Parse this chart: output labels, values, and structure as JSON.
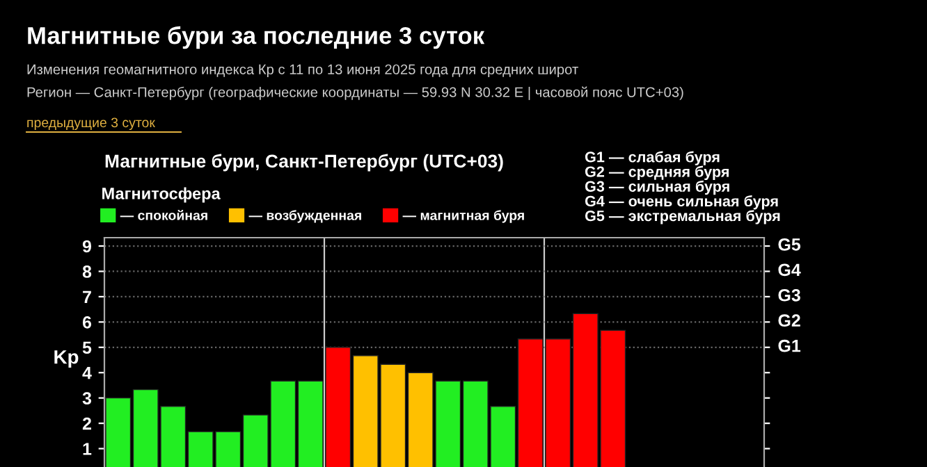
{
  "chart_data": {
    "type": "bar",
    "title": "Магнитные бури за последние 3 суток",
    "subtitle": "Изменения геомагнитного индекса Кр с 11 по 13 июня 2025 года для средних широт\nРегион — Санкт-Петербург (географические координаты — 59.93 N 30.32 E | часовой пояс UTC+03)",
    "annotations": [
      "предыдущие 3 суток",
      "Магнитные бури, Санкт-Петербург (UTC+03)",
      "G1 — слабая буря\nG2 — средняя буря\nG3 — сильная буря\nG4 — очень сильная буря\nG5 — экстремальная буря"
    ],
    "ylabel": "Kp",
    "categories": [
      null,
      null,
      null,
      null,
      null,
      null,
      null,
      null,
      null,
      null,
      null,
      null,
      null,
      null,
      null,
      null,
      null,
      null,
      null,
      null,
      null,
      null,
      null,
      null
    ],
    "legend": "top left",
    "legend_title": "Магнитосфера",
    "series": [
      {
        "name": "— спокойная",
        "color": "#22ee22",
        "values": [
          3,
          3.33,
          2.67,
          1.67,
          1.67,
          2.33,
          3.67,
          3.67,
          null,
          null,
          null,
          null,
          3.67,
          3.67,
          2.67,
          null,
          null,
          null,
          null,
          null,
          null,
          null,
          null,
          null
        ]
      },
      {
        "name": "— возбужденная",
        "color": "#ffc000",
        "values": [
          null,
          null,
          null,
          null,
          null,
          null,
          null,
          null,
          null,
          4.67,
          4.33,
          4,
          null,
          null,
          null,
          null,
          null,
          null,
          null,
          null,
          null,
          null,
          null,
          null
        ]
      },
      {
        "name": "— магнитная буря",
        "color": "#ff0000",
        "values": [
          null,
          null,
          null,
          null,
          null,
          null,
          null,
          null,
          5,
          null,
          null,
          null,
          null,
          null,
          null,
          5.33,
          5.33,
          6.33,
          5.67,
          null,
          null,
          null,
          null,
          null
        ]
      }
    ],
    "ylim": [
      0,
      9.33
    ],
    "yticks": [
      {
        "value": 0,
        "label": null
      },
      1,
      2,
      3,
      4,
      5,
      6,
      7,
      8,
      9
    ],
    "ref_lines": [
      {
        "axis": "y",
        "value": 5,
        "label": "G1",
        "color": "#666666",
        "line_style": "dotted"
      },
      {
        "axis": "y",
        "value": 6,
        "label": "G2",
        "color": "#666666",
        "line_style": "dotted"
      },
      {
        "axis": "y",
        "value": 7,
        "label": "G3",
        "color": "#666666",
        "line_style": "dotted"
      },
      {
        "axis": "y",
        "value": 8,
        "label": "G4",
        "color": "#666666",
        "line_style": "dotted"
      },
      {
        "axis": "y",
        "value": 9,
        "label": "G5",
        "color": "#666666",
        "line_style": "dotted"
      }
    ]
  }
}
